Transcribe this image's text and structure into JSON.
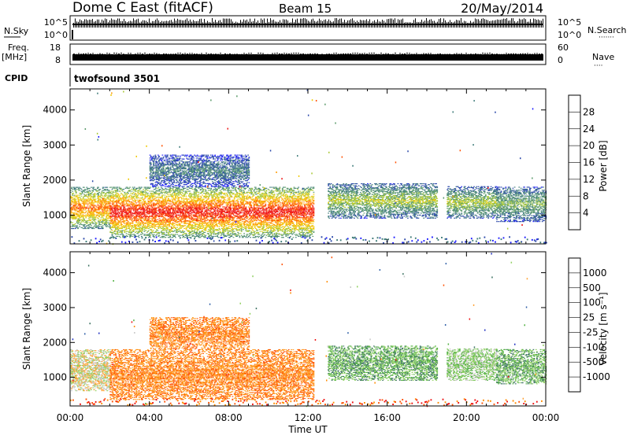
{
  "header": {
    "station": "Dome C East (fitACF)",
    "beam": "Beam 15",
    "date": "20/May/2014"
  },
  "top_panels": {
    "nsky": {
      "left_label": "N.Sky",
      "left_ticks": [
        "10^5",
        "10^0"
      ],
      "right_label": "N.Search",
      "right_ticks": [
        "10^5",
        "10^0"
      ]
    },
    "freq": {
      "left_label": "Freq.",
      "left_unit": "[MHz]",
      "left_ticks": [
        "18",
        "8"
      ],
      "right_label": "Nave",
      "right_ticks": [
        "60",
        "0"
      ]
    },
    "cpid": {
      "label": "CPID",
      "text": "twofsound 3501"
    }
  },
  "colors": {
    "power_scale": [
      "#1a1aff",
      "#2846a8",
      "#3c7a78",
      "#5a9a6a",
      "#a8c834",
      "#f0c800",
      "#ff9a00",
      "#ff5000",
      "#ee1010"
    ],
    "velocity_scale": [
      "#ee1010",
      "#ff5000",
      "#ff8a00",
      "#ffa030",
      "#c8c8c8",
      "#90d060",
      "#50b040",
      "#3a7060",
      "#3060a8",
      "#2030c0"
    ]
  },
  "chart_data": [
    {
      "type": "heatmap",
      "panel": "power",
      "ylabel": "Slant Range [km]",
      "yticks": [
        "1000",
        "2000",
        "3000",
        "4000"
      ],
      "ylim": [
        180,
        4600
      ],
      "xlim": [
        0,
        24
      ],
      "colorbar_label": "Power [dB]",
      "colorbar_ticks": [
        "4",
        "8",
        "12",
        "16",
        "20",
        "24",
        "28"
      ],
      "colorbar_range": [
        0,
        32
      ],
      "echo_regions": [
        {
          "t0": 0.0,
          "t1": 2.0,
          "r0": 600,
          "r1": 1800,
          "level": 22
        },
        {
          "t0": 2.0,
          "t1": 12.3,
          "r0": 350,
          "r1": 1800,
          "level": 26
        },
        {
          "t0": 4.0,
          "t1": 9.0,
          "r0": 1800,
          "r1": 2700,
          "level": 8
        },
        {
          "t0": 13.0,
          "t1": 18.5,
          "r0": 900,
          "r1": 1900,
          "level": 14
        },
        {
          "t0": 19.0,
          "t1": 21.5,
          "r0": 900,
          "r1": 1800,
          "level": 14
        },
        {
          "t0": 21.5,
          "t1": 24.0,
          "r0": 800,
          "r1": 1800,
          "level": 12
        }
      ]
    },
    {
      "type": "heatmap",
      "panel": "velocity",
      "ylabel": "Slant Range [km]",
      "yticks": [
        "1000",
        "2000",
        "3000",
        "4000"
      ],
      "ylim": [
        180,
        4600
      ],
      "xlim": [
        0,
        24
      ],
      "xticks": [
        "00:00",
        "04:00",
        "08:00",
        "12:00",
        "16:00",
        "20:00",
        "00:00"
      ],
      "xlabel": "Time UT",
      "colorbar_label": "Velocity [m s⁻¹]",
      "colorbar_ticks": [
        "1000",
        "500",
        "100",
        "25",
        "-25",
        "-100",
        "-500",
        "-1000"
      ],
      "echo_regions": [
        {
          "t0": 0.0,
          "t1": 2.0,
          "r0": 600,
          "r1": 1800,
          "velocity": 25
        },
        {
          "t0": 2.0,
          "t1": 12.3,
          "r0": 350,
          "r1": 1800,
          "velocity": -150
        },
        {
          "t0": 4.0,
          "t1": 9.0,
          "r0": 1800,
          "r1": 2700,
          "velocity": -300
        },
        {
          "t0": 13.0,
          "t1": 18.5,
          "r0": 900,
          "r1": 1900,
          "velocity": 150
        },
        {
          "t0": 19.0,
          "t1": 21.5,
          "r0": 900,
          "r1": 1800,
          "velocity": 100
        },
        {
          "t0": 21.5,
          "t1": 24.0,
          "r0": 800,
          "r1": 1800,
          "velocity": 120
        }
      ]
    }
  ]
}
